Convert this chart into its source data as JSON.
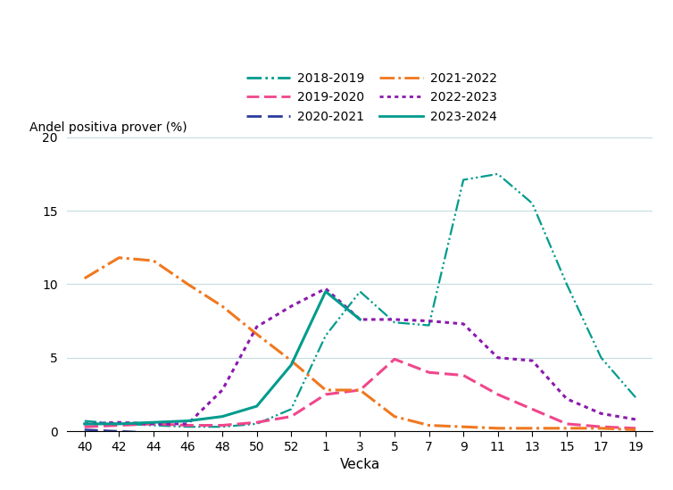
{
  "title_ylabel": "Andel positiva prover (%)",
  "xlabel": "Vecka",
  "xtick_labels": [
    "40",
    "42",
    "44",
    "46",
    "48",
    "50",
    "52",
    "1",
    "3",
    "5",
    "7",
    "9",
    "11",
    "13",
    "15",
    "17",
    "19"
  ],
  "ylim": [
    0,
    20
  ],
  "yticks": [
    0,
    5,
    10,
    15,
    20
  ],
  "series": [
    {
      "name": "2018-2019",
      "color": "#009B8D",
      "linestyle": "-.",
      "linewidth": 1.6,
      "values": [
        0.7,
        0.5,
        0.4,
        0.3,
        0.3,
        0.5,
        1.5,
        6.5,
        9.5,
        7.4,
        7.2,
        17.1,
        17.5,
        15.5,
        10.0,
        5.0,
        2.3
      ]
    },
    {
      "name": "2019-2020",
      "color": "#F0468C",
      "linestyle": "--",
      "linewidth": 2.2,
      "values": [
        0.3,
        0.4,
        0.5,
        0.4,
        0.4,
        0.6,
        1.0,
        2.5,
        2.8,
        4.9,
        4.0,
        3.8,
        2.5,
        1.5,
        0.5,
        0.3,
        0.2
      ]
    },
    {
      "name": "2020-2021",
      "color": "#2B3B9B",
      "linestyle": "--",
      "linewidth": 1.8,
      "values": [
        0.1,
        0.0,
        -0.1,
        -0.1,
        -0.1,
        -0.1,
        -0.1,
        -0.1,
        -0.1,
        -0.1,
        -0.1,
        -0.1,
        -0.1,
        -0.1,
        -0.1,
        -0.1,
        -0.1
      ]
    },
    {
      "name": "2021-2022",
      "color": "#F07820",
      "linestyle": "-.",
      "linewidth": 2.2,
      "values": [
        10.4,
        11.8,
        11.6,
        10.0,
        8.5,
        6.6,
        4.8,
        2.8,
        2.8,
        1.0,
        0.4,
        0.3,
        0.2,
        0.2,
        0.2,
        0.2,
        0.1
      ]
    },
    {
      "name": "2022-2023",
      "color": "#8B1AAE",
      "linestyle": ":",
      "linewidth": 2.2,
      "values": [
        0.5,
        0.6,
        0.5,
        0.5,
        2.8,
        7.1,
        8.5,
        9.7,
        7.6,
        7.6,
        7.5,
        7.3,
        5.0,
        4.8,
        2.2,
        1.2,
        0.8
      ]
    },
    {
      "name": "2023-2024",
      "color": "#009B8D",
      "linestyle": "-",
      "linewidth": 2.2,
      "values": [
        0.5,
        0.5,
        0.6,
        0.7,
        1.0,
        1.7,
        4.5,
        9.5,
        7.6,
        null,
        null,
        null,
        null,
        null,
        null,
        null,
        null
      ]
    }
  ],
  "legend_order": [
    "2018-2019",
    "2019-2020",
    "2020-2021",
    "2021-2022",
    "2022-2023",
    "2023-2024"
  ],
  "background_color": "#FFFFFF",
  "grid_color": "#C5DCE0",
  "figure_size": [
    7.54,
    5.49
  ],
  "dpi": 100
}
